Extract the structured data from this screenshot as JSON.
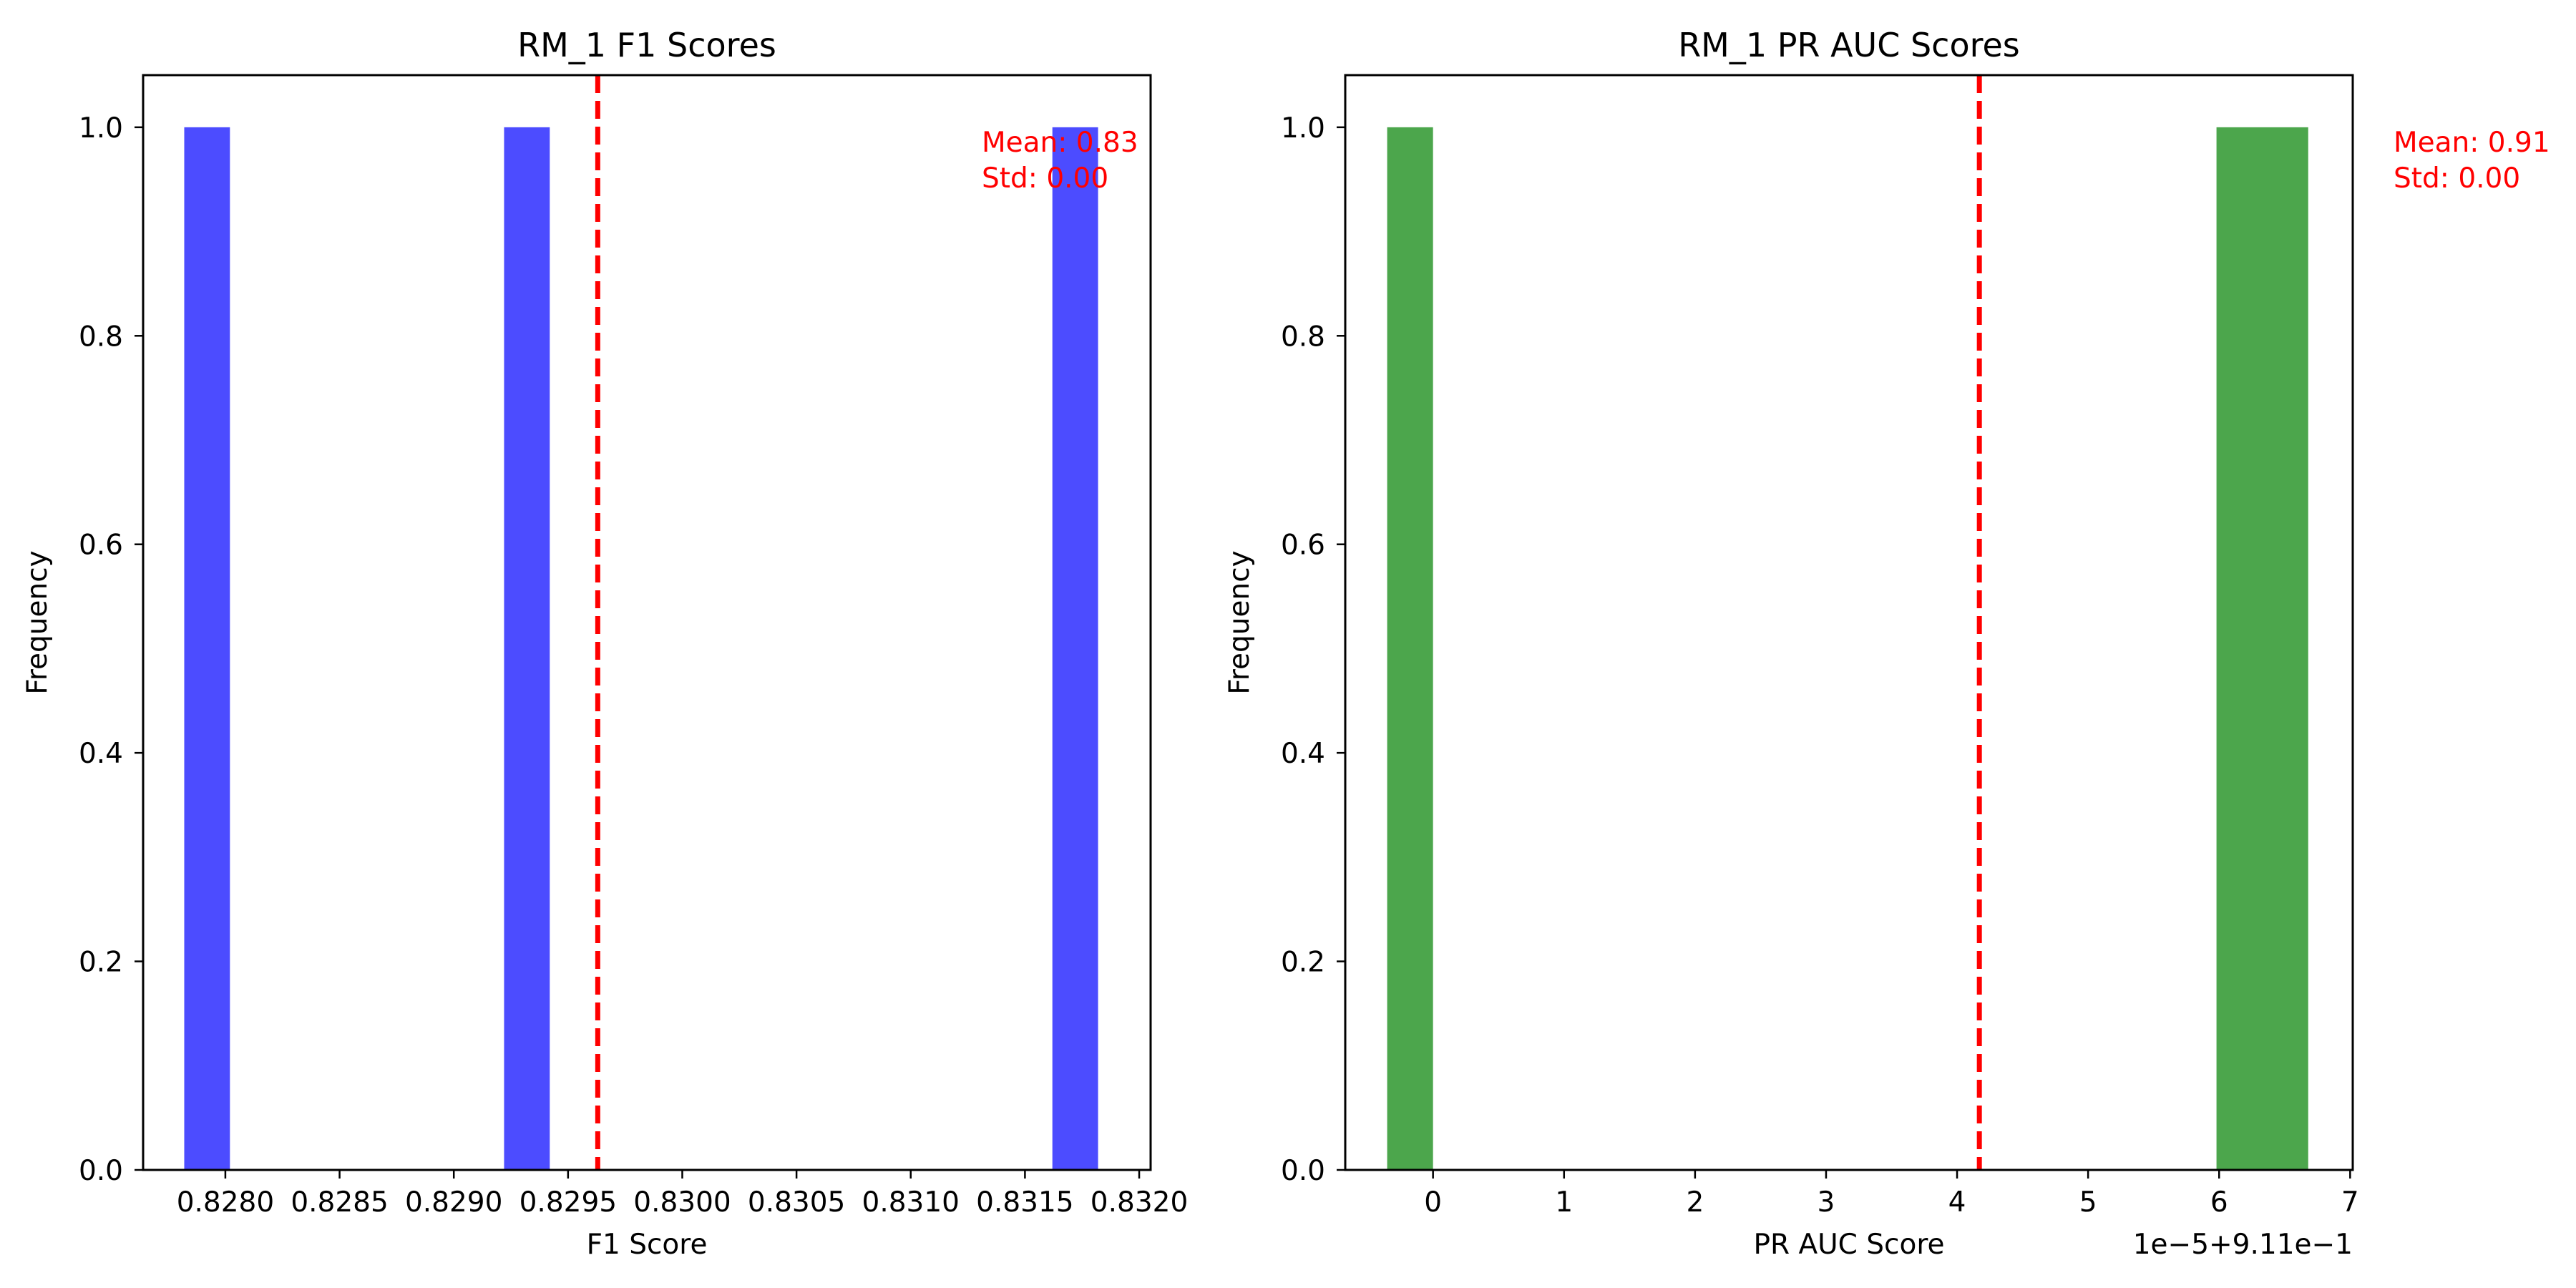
{
  "chart_data": [
    {
      "type": "bar",
      "title": "RM_1 F1 Scores",
      "xlabel": "F1 Score",
      "ylabel": "Frequency",
      "xlim": [
        0.82764,
        0.83205
      ],
      "ylim": [
        0,
        1.05
      ],
      "xticks": [
        0.828,
        0.8285,
        0.829,
        0.8295,
        0.83,
        0.8305,
        0.831,
        0.8315,
        0.832
      ],
      "xtick_labels": [
        "0.8280",
        "0.8285",
        "0.8290",
        "0.8295",
        "0.8300",
        "0.8305",
        "0.8310",
        "0.8315",
        "0.8320"
      ],
      "yticks": [
        0.0,
        0.2,
        0.4,
        0.6,
        0.8,
        1.0
      ],
      "ytick_labels": [
        "0.0",
        "0.2",
        "0.4",
        "0.6",
        "0.8",
        "1.0"
      ],
      "offset_label": "",
      "bars": [
        {
          "x0": 0.82782,
          "x1": 0.82802,
          "value": 1
        },
        {
          "x0": 0.82922,
          "x1": 0.82942,
          "value": 1
        },
        {
          "x0": 0.83162,
          "x1": 0.83182,
          "value": 1
        }
      ],
      "bar_color": "#4c4cff",
      "mean_line": 0.82963,
      "mean_color": "#ff0000",
      "annotation": [
        "Mean: 0.83",
        "Std: 0.00"
      ]
    },
    {
      "type": "bar",
      "title": "RM_1 PR AUC Scores",
      "xlabel": "PR AUC Score",
      "ylabel": "Frequency",
      "xlim": [
        -0.67,
        7.02
      ],
      "ylim": [
        0,
        1.05
      ],
      "xticks": [
        0,
        1,
        2,
        3,
        4,
        5,
        6,
        7
      ],
      "xtick_labels": [
        "0",
        "1",
        "2",
        "3",
        "4",
        "5",
        "6",
        "7"
      ],
      "yticks": [
        0.0,
        0.2,
        0.4,
        0.6,
        0.8,
        1.0
      ],
      "ytick_labels": [
        "0.0",
        "0.2",
        "0.4",
        "0.6",
        "0.8",
        "1.0"
      ],
      "offset_label": "1e−5+9.11e−1",
      "bars": [
        {
          "x0": -0.35,
          "x1": 0.0,
          "value": 1
        },
        {
          "x0": 5.98,
          "x1": 6.68,
          "value": 1
        }
      ],
      "bar_color": "#4ca64c",
      "mean_line": 4.17,
      "mean_color": "#ff0000",
      "annotation": [
        "Mean: 0.91",
        "Std: 0.00"
      ]
    }
  ]
}
